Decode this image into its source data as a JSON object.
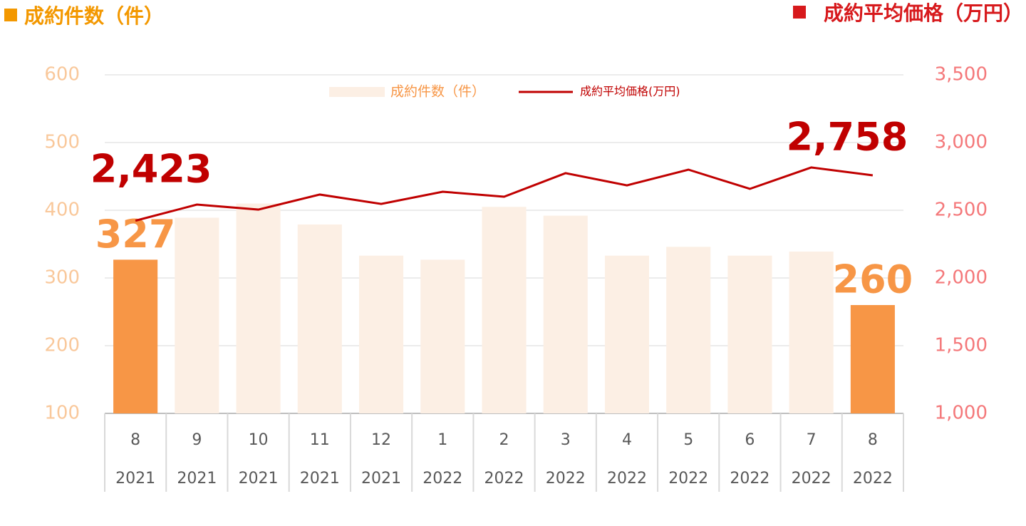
{
  "chart_data": {
    "type": "bar+line",
    "y_label": "成約件数（件）",
    "y2_label": "成約平均価格（万円）",
    "categories": [
      "8",
      "9",
      "10",
      "11",
      "12",
      "1",
      "2",
      "3",
      "4",
      "5",
      "6",
      "7",
      "8"
    ],
    "category_years": [
      "2021",
      "2021",
      "2021",
      "2021",
      "2021",
      "2022",
      "2022",
      "2022",
      "2022",
      "2022",
      "2022",
      "2022",
      "2022"
    ],
    "series": [
      {
        "name": "成約件数（件）",
        "type": "bar",
        "color": "#fcefe4",
        "colors": [
          "#f79646",
          "#fcefe4",
          "#fcefe4",
          "#fcefe4",
          "#fcefe4",
          "#fcefe4",
          "#fcefe4",
          "#fcefe4",
          "#fcefe4",
          "#fcefe4",
          "#fcefe4",
          "#fcefe4",
          "#f79646"
        ],
        "values": [
          327,
          389,
          410,
          379,
          333,
          327,
          405,
          392,
          333,
          346,
          333,
          339,
          260
        ],
        "value_labels": [
          "327",
          null,
          null,
          null,
          null,
          null,
          null,
          null,
          null,
          null,
          null,
          null,
          "260"
        ]
      },
      {
        "name": "成約平均価格(万円)",
        "type": "line",
        "axis": "y2",
        "color": "#c00000",
        "values": [
          2423,
          2542,
          2505,
          2616,
          2547,
          2637,
          2600,
          2774,
          2684,
          2800,
          2658,
          2816,
          2758
        ],
        "value_labels": [
          "2,423",
          null,
          null,
          null,
          null,
          null,
          null,
          null,
          null,
          null,
          null,
          null,
          "2,758"
        ]
      }
    ],
    "ylim": [
      100,
      600
    ],
    "yticks": [
      100,
      200,
      300,
      400,
      500,
      600
    ],
    "y2lim": [
      1000,
      3500
    ],
    "y2ticks": [
      {
        "value": 1000,
        "label": "1,000"
      },
      {
        "value": 1500,
        "label": "1,500"
      },
      {
        "value": 2000,
        "label": "2,000"
      },
      {
        "value": 2500,
        "label": "2,500"
      },
      {
        "value": 3000,
        "label": "3,000"
      },
      {
        "value": 3500,
        "label": "3,500"
      }
    ],
    "grid": true,
    "legend": "top"
  }
}
